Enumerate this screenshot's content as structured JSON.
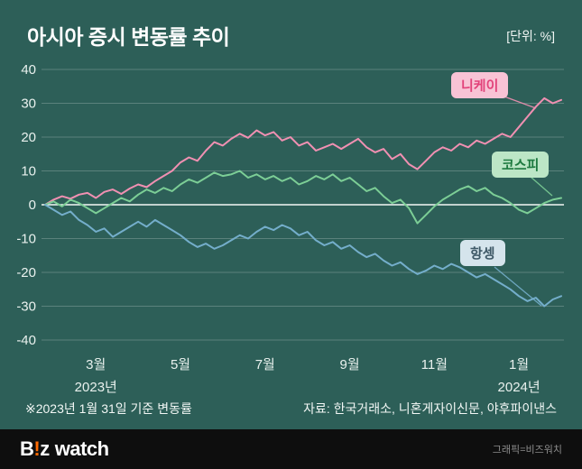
{
  "header": {
    "title": "아시아 증시 변동률 추이",
    "unit": "[단위: %]"
  },
  "annotations": {
    "nikkei": "니케이",
    "kospi": "코스피",
    "hangseng": "항셍"
  },
  "footnote": "※2023년 1월 31일 기준 변동률",
  "source": "자료: 한국거래소, 니혼게자이신문, 야후파이낸스",
  "footer": {
    "logo_b": "B",
    "logo_excl": "!",
    "logo_z": "z",
    "logo_watch": "watch",
    "credit": "그래픽=비즈워치"
  },
  "colors": {
    "background": "#2d5f58",
    "nikkei_line": "#f090b2",
    "kospi_line": "#7cce96",
    "hangseng_line": "#74aecb",
    "nikkei_badge_bg": "#f8c3d5",
    "kospi_badge_bg": "#bce6c6",
    "hangseng_badge_bg": "#d5e4ec",
    "footer_bg": "#0e0e0e",
    "logo_accent": "#ff6a00"
  },
  "chart_data": {
    "type": "line",
    "title": "아시아 증시 변동률 추이",
    "unit": "%",
    "baseline_note": "2023년 1월 31일 기준 변동률",
    "ylim": [
      -40,
      40
    ],
    "y_ticks": [
      40,
      30,
      20,
      10,
      0,
      -10,
      -20,
      -30,
      -40
    ],
    "x_range": [
      0,
      61
    ],
    "x_ticks": [
      {
        "label": "3월",
        "pos": 6
      },
      {
        "label": "5월",
        "pos": 16
      },
      {
        "label": "7월",
        "pos": 26
      },
      {
        "label": "9월",
        "pos": 36
      },
      {
        "label": "11월",
        "pos": 46
      },
      {
        "label": "1월",
        "pos": 56
      }
    ],
    "x_years": [
      {
        "label": "2023년",
        "pos": 6
      },
      {
        "label": "2024년",
        "pos": 56
      }
    ],
    "grid": true,
    "legend_position": "inline-callouts",
    "series": [
      {
        "name": "니케이",
        "color": "#f090b2",
        "values": [
          0,
          1.5,
          2.5,
          1.8,
          3,
          3.5,
          2,
          3.8,
          4.5,
          3.2,
          4.8,
          6,
          5.2,
          7,
          8.5,
          10,
          12.5,
          14,
          13,
          16,
          18.5,
          17.5,
          19.5,
          21,
          19.8,
          22,
          20.5,
          21.5,
          19,
          20,
          17.5,
          18.5,
          16,
          17,
          18,
          16.5,
          18,
          19.5,
          17,
          15.5,
          16.5,
          13.5,
          15,
          12,
          10.5,
          13,
          15.5,
          17,
          16,
          18,
          17,
          19,
          18,
          19.5,
          21,
          20,
          23,
          26,
          29,
          31.5,
          30,
          31
        ]
      },
      {
        "name": "코스피",
        "color": "#7cce96",
        "values": [
          0,
          1,
          -0.5,
          1.5,
          0.5,
          -1,
          -2.5,
          -1,
          0.5,
          2,
          1,
          3,
          4.5,
          3.5,
          5,
          4,
          6,
          7.5,
          6.5,
          8,
          9.5,
          8.5,
          9,
          10,
          8,
          9,
          7.5,
          8.5,
          7,
          8,
          6,
          7,
          8.5,
          7.5,
          9,
          7,
          8,
          6,
          4,
          5,
          2.5,
          0.5,
          1.5,
          -1,
          -5.5,
          -3,
          -0.5,
          1.5,
          3,
          4.5,
          5.5,
          4,
          5,
          3,
          2,
          0.5,
          -1.5,
          -2.5,
          -1,
          0.5,
          1.5,
          2
        ]
      },
      {
        "name": "항셍",
        "color": "#74aecb",
        "values": [
          0,
          -1.5,
          -3,
          -2,
          -4.5,
          -6,
          -8,
          -7,
          -9.5,
          -8,
          -6.5,
          -5,
          -6.5,
          -4.5,
          -6,
          -7.5,
          -9,
          -11,
          -12.5,
          -11.5,
          -13,
          -12,
          -10.5,
          -9,
          -10,
          -8,
          -6.5,
          -7.5,
          -6,
          -7,
          -9,
          -8,
          -10.5,
          -12,
          -11,
          -13,
          -12,
          -14,
          -15.5,
          -14.5,
          -16.5,
          -18,
          -17,
          -19,
          -20.5,
          -19.5,
          -18,
          -19,
          -17.5,
          -18.5,
          -20,
          -21.5,
          -20.5,
          -22,
          -23.5,
          -25,
          -27,
          -28.5,
          -27.5,
          -30,
          -28,
          -27
        ]
      }
    ]
  }
}
